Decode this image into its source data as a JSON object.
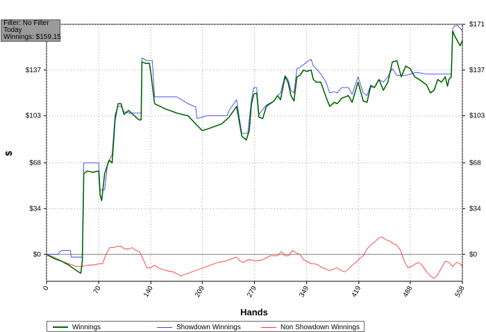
{
  "info_box": {
    "filter": "Filter: No Filter",
    "period": "Today",
    "winnings": "Winnings: $159.15"
  },
  "chart_data": {
    "type": "line",
    "xlabel": "Hands",
    "ylabel": "$",
    "xlim": [
      0,
      558
    ],
    "ylim": [
      -20,
      171
    ],
    "x_ticks": [
      0,
      70,
      140,
      209,
      279,
      349,
      419,
      488,
      558
    ],
    "y_ticks": [
      0,
      34,
      68,
      103,
      137,
      171
    ],
    "y_tick_labels": [
      "$0",
      "$34",
      "$68",
      "$103",
      "$137",
      "$171"
    ],
    "grid": true,
    "legend": "bottom",
    "series": [
      {
        "name": "Winnings",
        "color": "#006400",
        "points": [
          [
            0,
            0
          ],
          [
            10,
            -3
          ],
          [
            20,
            -5
          ],
          [
            30,
            -8
          ],
          [
            40,
            -12
          ],
          [
            46,
            -14
          ],
          [
            48,
            -5
          ],
          [
            50,
            60
          ],
          [
            55,
            62
          ],
          [
            62,
            61
          ],
          [
            70,
            62
          ],
          [
            72,
            44
          ],
          [
            74,
            40
          ],
          [
            78,
            60
          ],
          [
            84,
            70
          ],
          [
            88,
            68
          ],
          [
            92,
            100
          ],
          [
            96,
            112
          ],
          [
            100,
            112
          ],
          [
            104,
            104
          ],
          [
            110,
            107
          ],
          [
            116,
            104
          ],
          [
            124,
            100
          ],
          [
            127,
            100
          ],
          [
            128,
            143
          ],
          [
            133,
            142
          ],
          [
            138,
            142
          ],
          [
            140,
            135
          ],
          [
            145,
            112
          ],
          [
            160,
            108
          ],
          [
            175,
            105
          ],
          [
            190,
            103
          ],
          [
            200,
            97
          ],
          [
            209,
            92
          ],
          [
            215,
            93
          ],
          [
            225,
            95
          ],
          [
            235,
            97
          ],
          [
            245,
            102
          ],
          [
            255,
            110
          ],
          [
            262,
            88
          ],
          [
            268,
            85
          ],
          [
            272,
            92
          ],
          [
            275,
            112
          ],
          [
            278,
            119
          ],
          [
            282,
            120
          ],
          [
            285,
            102
          ],
          [
            290,
            101
          ],
          [
            295,
            110
          ],
          [
            305,
            114
          ],
          [
            310,
            118
          ],
          [
            314,
            115
          ],
          [
            320,
            132
          ],
          [
            324,
            128
          ],
          [
            328,
            118
          ],
          [
            332,
            114
          ],
          [
            336,
            132
          ],
          [
            340,
            133
          ],
          [
            345,
            137
          ],
          [
            349,
            136
          ],
          [
            355,
            137
          ],
          [
            358,
            130
          ],
          [
            362,
            128
          ],
          [
            368,
            128
          ],
          [
            375,
            117
          ],
          [
            380,
            110
          ],
          [
            386,
            113
          ],
          [
            390,
            112
          ],
          [
            396,
            116
          ],
          [
            405,
            118
          ],
          [
            410,
            113
          ],
          [
            418,
            128
          ],
          [
            425,
            114
          ],
          [
            430,
            113
          ],
          [
            435,
            125
          ],
          [
            440,
            124
          ],
          [
            446,
            130
          ],
          [
            452,
            122
          ],
          [
            458,
            128
          ],
          [
            464,
            143
          ],
          [
            470,
            144
          ],
          [
            476,
            132
          ],
          [
            482,
            140
          ],
          [
            488,
            138
          ],
          [
            494,
            132
          ],
          [
            500,
            130
          ],
          [
            510,
            126
          ],
          [
            515,
            120
          ],
          [
            520,
            122
          ],
          [
            525,
            130
          ],
          [
            530,
            128
          ],
          [
            535,
            132
          ],
          [
            538,
            125
          ],
          [
            540,
            130
          ],
          [
            543,
            132
          ],
          [
            545,
            166
          ],
          [
            548,
            162
          ],
          [
            552,
            158
          ],
          [
            555,
            155
          ],
          [
            558,
            159
          ]
        ]
      },
      {
        "name": "Showdown Winnings",
        "color": "#3c3cff",
        "points": [
          [
            0,
            0
          ],
          [
            10,
            0
          ],
          [
            15,
            0
          ],
          [
            20,
            3
          ],
          [
            32,
            3
          ],
          [
            33,
            -2
          ],
          [
            48,
            -2
          ],
          [
            50,
            68
          ],
          [
            55,
            68
          ],
          [
            62,
            68
          ],
          [
            70,
            68
          ],
          [
            72,
            48
          ],
          [
            78,
            48
          ],
          [
            82,
            68
          ],
          [
            88,
            74
          ],
          [
            92,
            104
          ],
          [
            96,
            110
          ],
          [
            100,
            110
          ],
          [
            104,
            106
          ],
          [
            110,
            105
          ],
          [
            116,
            105
          ],
          [
            124,
            105
          ],
          [
            127,
            105
          ],
          [
            128,
            146
          ],
          [
            135,
            144
          ],
          [
            140,
            144
          ],
          [
            142,
            144
          ],
          [
            145,
            117
          ],
          [
            175,
            117
          ],
          [
            190,
            112
          ],
          [
            198,
            110
          ],
          [
            200,
            110
          ],
          [
            202,
            101
          ],
          [
            209,
            102
          ],
          [
            215,
            103
          ],
          [
            235,
            103
          ],
          [
            242,
            103
          ],
          [
            245,
            107
          ],
          [
            255,
            115
          ],
          [
            262,
            90
          ],
          [
            270,
            90
          ],
          [
            275,
            115
          ],
          [
            278,
            124
          ],
          [
            282,
            124
          ],
          [
            285,
            104
          ],
          [
            295,
            111
          ],
          [
            305,
            114
          ],
          [
            310,
            118
          ],
          [
            314,
            120
          ],
          [
            320,
            133
          ],
          [
            324,
            130
          ],
          [
            328,
            122
          ],
          [
            332,
            120
          ],
          [
            336,
            138
          ],
          [
            340,
            139
          ],
          [
            345,
            141
          ],
          [
            349,
            143
          ],
          [
            355,
            145
          ],
          [
            358,
            140
          ],
          [
            362,
            138
          ],
          [
            368,
            134
          ],
          [
            375,
            128
          ],
          [
            380,
            120
          ],
          [
            386,
            121
          ],
          [
            390,
            120
          ],
          [
            396,
            124
          ],
          [
            405,
            124
          ],
          [
            410,
            119
          ],
          [
            418,
            132
          ],
          [
            425,
            120
          ],
          [
            430,
            118
          ],
          [
            435,
            126
          ],
          [
            440,
            124
          ],
          [
            446,
            130
          ],
          [
            452,
            128
          ],
          [
            458,
            132
          ],
          [
            464,
            138
          ],
          [
            470,
            133
          ],
          [
            476,
            133
          ],
          [
            482,
            133
          ],
          [
            488,
            134
          ],
          [
            494,
            135
          ],
          [
            500,
            135
          ],
          [
            510,
            134
          ],
          [
            515,
            134
          ],
          [
            520,
            134
          ],
          [
            525,
            134
          ],
          [
            530,
            134
          ],
          [
            535,
            134
          ],
          [
            540,
            134
          ],
          [
            543,
            134
          ],
          [
            545,
            168
          ],
          [
            548,
            170
          ],
          [
            552,
            170
          ],
          [
            555,
            168
          ],
          [
            558,
            166
          ]
        ]
      },
      {
        "name": "Non Showdown Winnings",
        "color": "#ff3030",
        "points": [
          [
            0,
            0
          ],
          [
            10,
            -2
          ],
          [
            20,
            -5
          ],
          [
            30,
            -7
          ],
          [
            40,
            -9
          ],
          [
            48,
            -9
          ],
          [
            55,
            -8
          ],
          [
            62,
            -8
          ],
          [
            70,
            -7
          ],
          [
            75,
            -7
          ],
          [
            80,
            0
          ],
          [
            85,
            5
          ],
          [
            90,
            5
          ],
          [
            95,
            6
          ],
          [
            100,
            6
          ],
          [
            105,
            4
          ],
          [
            110,
            4
          ],
          [
            115,
            5
          ],
          [
            120,
            3
          ],
          [
            125,
            2
          ],
          [
            130,
            -4
          ],
          [
            135,
            -10
          ],
          [
            140,
            -10
          ],
          [
            145,
            -8
          ],
          [
            150,
            -10
          ],
          [
            160,
            -12
          ],
          [
            170,
            -13
          ],
          [
            180,
            -16
          ],
          [
            190,
            -14
          ],
          [
            200,
            -12
          ],
          [
            210,
            -10
          ],
          [
            220,
            -8
          ],
          [
            230,
            -6
          ],
          [
            240,
            -5
          ],
          [
            250,
            -3
          ],
          [
            255,
            -2
          ],
          [
            260,
            -5
          ],
          [
            265,
            -6
          ],
          [
            270,
            -4
          ],
          [
            275,
            -4
          ],
          [
            280,
            -5
          ],
          [
            290,
            -4
          ],
          [
            300,
            -1
          ],
          [
            310,
            -1
          ],
          [
            315,
            2
          ],
          [
            320,
            -1
          ],
          [
            325,
            -1
          ],
          [
            330,
            3
          ],
          [
            335,
            1
          ],
          [
            340,
            0
          ],
          [
            345,
            -4
          ],
          [
            349,
            -5
          ],
          [
            355,
            -7
          ],
          [
            360,
            -7
          ],
          [
            365,
            -8
          ],
          [
            370,
            -10
          ],
          [
            375,
            -11
          ],
          [
            380,
            -12
          ],
          [
            385,
            -11
          ],
          [
            390,
            -10
          ],
          [
            395,
            -12
          ],
          [
            400,
            -13
          ],
          [
            405,
            -11
          ],
          [
            410,
            -8
          ],
          [
            415,
            -6
          ],
          [
            420,
            -3
          ],
          [
            425,
            -1
          ],
          [
            430,
            4
          ],
          [
            435,
            7
          ],
          [
            440,
            9
          ],
          [
            445,
            12
          ],
          [
            450,
            13
          ],
          [
            455,
            11
          ],
          [
            460,
            10
          ],
          [
            465,
            8
          ],
          [
            470,
            7
          ],
          [
            475,
            3
          ],
          [
            480,
            -5
          ],
          [
            485,
            -10
          ],
          [
            490,
            -9
          ],
          [
            495,
            -7
          ],
          [
            500,
            -6
          ],
          [
            505,
            -9
          ],
          [
            510,
            -13
          ],
          [
            515,
            -16
          ],
          [
            520,
            -18
          ],
          [
            525,
            -15
          ],
          [
            530,
            -10
          ],
          [
            535,
            -5
          ],
          [
            540,
            -6
          ],
          [
            545,
            -9
          ],
          [
            550,
            -6
          ],
          [
            555,
            -7
          ],
          [
            558,
            -9
          ]
        ]
      }
    ]
  }
}
